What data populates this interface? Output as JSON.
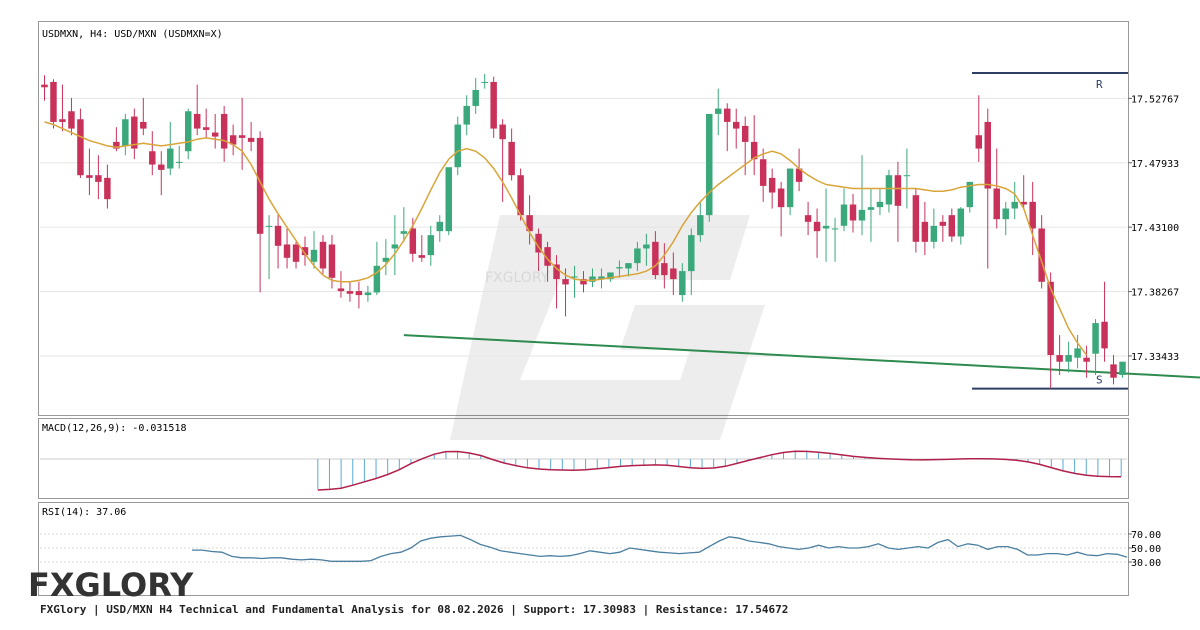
{
  "chart_data": {
    "type": "candlestick",
    "title": "USDMXN, H4: USD/MXN (USDMXN=X)",
    "price_axis": {
      "ylim": [
        17.29,
        17.585
      ],
      "ticks": [
        "17.52767",
        "17.47933",
        "17.43100",
        "17.38267",
        "17.33433"
      ]
    },
    "levels": {
      "resistance": {
        "label": "R",
        "value": 17.5467
      },
      "support": {
        "label": "S",
        "value": 17.3098
      }
    },
    "trendline": {
      "from": {
        "index": 40,
        "value": 17.35
      },
      "to": {
        "index": 164,
        "value": 17.3055
      }
    },
    "candles": [
      [
        17.538,
        17.545,
        17.536,
        17.526
      ],
      [
        17.54,
        17.542,
        17.51,
        17.505
      ],
      [
        17.512,
        17.538,
        17.51,
        17.503
      ],
      [
        17.518,
        17.528,
        17.505,
        17.5
      ],
      [
        17.512,
        17.52,
        17.47,
        17.468
      ],
      [
        17.47,
        17.49,
        17.468,
        17.455
      ],
      [
        17.47,
        17.485,
        17.465,
        17.452
      ],
      [
        17.468,
        17.478,
        17.452,
        17.445
      ],
      [
        17.495,
        17.506,
        17.49,
        17.488
      ],
      [
        17.492,
        17.516,
        17.512,
        17.485
      ],
      [
        17.514,
        17.52,
        17.49,
        17.482
      ],
      [
        17.51,
        17.528,
        17.505,
        17.5
      ],
      [
        17.488,
        17.503,
        17.478,
        17.47
      ],
      [
        17.478,
        17.488,
        17.474,
        17.455
      ],
      [
        17.475,
        17.51,
        17.49,
        17.47
      ],
      [
        17.48,
        17.492,
        17.48,
        17.475
      ],
      [
        17.488,
        17.52,
        17.518,
        17.482
      ],
      [
        17.516,
        17.538,
        17.505,
        17.5
      ],
      [
        17.506,
        17.52,
        17.504,
        17.498
      ],
      [
        17.502,
        17.516,
        17.499,
        17.49
      ],
      [
        17.516,
        17.522,
        17.49,
        17.48
      ],
      [
        17.5,
        17.508,
        17.493,
        17.485
      ],
      [
        17.5,
        17.528,
        17.498,
        17.474
      ],
      [
        17.498,
        17.51,
        17.495,
        17.488
      ],
      [
        17.498,
        17.503,
        17.426,
        17.382
      ],
      [
        17.432,
        17.44,
        17.432,
        17.392
      ],
      [
        17.432,
        17.44,
        17.417,
        17.4
      ],
      [
        17.418,
        17.43,
        17.408,
        17.4
      ],
      [
        17.418,
        17.42,
        17.405,
        17.4
      ],
      [
        17.416,
        17.424,
        17.41,
        17.402
      ],
      [
        17.405,
        17.428,
        17.414,
        17.4
      ],
      [
        17.42,
        17.425,
        17.4,
        17.396
      ],
      [
        17.418,
        17.425,
        17.393,
        17.385
      ],
      [
        17.385,
        17.398,
        17.383,
        17.378
      ],
      [
        17.383,
        17.39,
        17.381,
        17.375
      ],
      [
        17.383,
        17.39,
        17.38,
        17.37
      ],
      [
        17.38,
        17.387,
        17.382,
        17.375
      ],
      [
        17.382,
        17.42,
        17.402,
        17.38
      ],
      [
        17.405,
        17.422,
        17.408,
        17.395
      ],
      [
        17.415,
        17.44,
        17.418,
        17.395
      ],
      [
        17.426,
        17.446,
        17.428,
        17.42
      ],
      [
        17.43,
        17.438,
        17.411,
        17.405
      ],
      [
        17.41,
        17.425,
        17.408,
        17.405
      ],
      [
        17.41,
        17.432,
        17.425,
        17.402
      ],
      [
        17.428,
        17.44,
        17.435,
        17.42
      ],
      [
        17.428,
        17.464,
        17.476,
        17.425
      ],
      [
        17.476,
        17.514,
        17.508,
        17.47
      ],
      [
        17.508,
        17.53,
        17.522,
        17.5
      ],
      [
        17.522,
        17.543,
        17.534,
        17.516
      ],
      [
        17.54,
        17.546,
        17.54,
        17.535
      ],
      [
        17.54,
        17.544,
        17.505,
        17.498
      ],
      [
        17.508,
        17.512,
        17.497,
        17.45
      ],
      [
        17.495,
        17.505,
        17.47,
        17.466
      ],
      [
        17.47,
        17.475,
        17.44,
        17.436
      ],
      [
        17.44,
        17.455,
        17.428,
        17.418
      ],
      [
        17.426,
        17.43,
        17.412,
        17.398
      ],
      [
        17.416,
        17.42,
        17.402,
        17.39
      ],
      [
        17.403,
        17.41,
        17.392,
        17.37
      ],
      [
        17.392,
        17.4,
        17.388,
        17.364
      ],
      [
        17.394,
        17.402,
        17.394,
        17.378
      ],
      [
        17.392,
        17.398,
        17.388,
        17.382
      ],
      [
        17.39,
        17.4,
        17.394,
        17.386
      ],
      [
        17.392,
        17.4,
        17.394,
        17.385
      ],
      [
        17.392,
        17.395,
        17.397,
        17.39
      ],
      [
        17.4,
        17.406,
        17.401,
        17.393
      ],
      [
        17.4,
        17.404,
        17.404,
        17.394
      ],
      [
        17.404,
        17.42,
        17.415,
        17.398
      ],
      [
        17.415,
        17.426,
        17.418,
        17.402
      ],
      [
        17.42,
        17.428,
        17.395,
        17.392
      ],
      [
        17.404,
        17.419,
        17.395,
        17.385
      ],
      [
        17.4,
        17.412,
        17.392,
        17.38
      ],
      [
        17.38,
        17.404,
        17.398,
        17.375
      ],
      [
        17.398,
        17.43,
        17.425,
        17.38
      ],
      [
        17.425,
        17.45,
        17.44,
        17.42
      ],
      [
        17.44,
        17.485,
        17.516,
        17.435
      ],
      [
        17.516,
        17.535,
        17.52,
        17.5
      ],
      [
        17.52,
        17.524,
        17.51,
        17.488
      ],
      [
        17.51,
        17.52,
        17.505,
        17.49
      ],
      [
        17.507,
        17.514,
        17.495,
        17.47
      ],
      [
        17.495,
        17.515,
        17.482,
        17.47
      ],
      [
        17.482,
        17.49,
        17.462,
        17.45
      ],
      [
        17.468,
        17.475,
        17.457,
        17.445
      ],
      [
        17.46,
        17.465,
        17.446,
        17.424
      ],
      [
        17.446,
        17.45,
        17.475,
        17.44
      ],
      [
        17.475,
        17.49,
        17.465,
        17.458
      ],
      [
        17.44,
        17.45,
        17.435,
        17.425
      ],
      [
        17.435,
        17.445,
        17.428,
        17.408
      ],
      [
        17.43,
        17.46,
        17.432,
        17.405
      ],
      [
        17.43,
        17.438,
        17.43,
        17.405
      ],
      [
        17.432,
        17.46,
        17.448,
        17.428
      ],
      [
        17.448,
        17.456,
        17.436,
        17.427
      ],
      [
        17.436,
        17.485,
        17.444,
        17.425
      ],
      [
        17.444,
        17.46,
        17.446,
        17.42
      ],
      [
        17.446,
        17.46,
        17.45,
        17.44
      ],
      [
        17.448,
        17.474,
        17.47,
        17.442
      ],
      [
        17.47,
        17.48,
        17.447,
        17.42
      ],
      [
        17.47,
        17.49,
        17.47,
        17.445
      ],
      [
        17.455,
        17.46,
        17.42,
        17.412
      ],
      [
        17.435,
        17.45,
        17.42,
        17.41
      ],
      [
        17.42,
        17.445,
        17.432,
        17.415
      ],
      [
        17.435,
        17.44,
        17.432,
        17.42
      ],
      [
        17.44,
        17.445,
        17.424,
        17.42
      ],
      [
        17.424,
        17.446,
        17.445,
        17.418
      ],
      [
        17.446,
        17.465,
        17.465,
        17.442
      ],
      [
        17.5,
        17.53,
        17.49,
        17.48
      ],
      [
        17.51,
        17.52,
        17.46,
        17.4
      ],
      [
        17.46,
        17.49,
        17.437,
        17.43
      ],
      [
        17.437,
        17.45,
        17.445,
        17.425
      ],
      [
        17.445,
        17.465,
        17.45,
        17.437
      ],
      [
        17.45,
        17.47,
        17.448,
        17.445
      ],
      [
        17.45,
        17.465,
        17.43,
        17.41
      ],
      [
        17.43,
        17.44,
        17.39,
        17.385
      ],
      [
        17.39,
        17.397,
        17.335,
        17.31
      ],
      [
        17.335,
        17.35,
        17.33,
        17.32
      ],
      [
        17.33,
        17.345,
        17.335,
        17.322
      ],
      [
        17.333,
        17.35,
        17.34,
        17.325
      ],
      [
        17.333,
        17.342,
        17.33,
        17.318
      ],
      [
        17.336,
        17.362,
        17.359,
        17.32
      ],
      [
        17.36,
        17.39,
        17.34,
        17.33
      ],
      [
        17.328,
        17.335,
        17.318,
        17.313
      ],
      [
        17.32,
        17.33,
        17.33,
        17.318
      ]
    ],
    "ma_overlay": [
      17.51,
      17.508,
      17.505,
      17.502,
      17.499,
      17.496,
      17.494,
      17.492,
      17.491,
      17.492,
      17.493,
      17.494,
      17.493,
      17.492,
      17.493,
      17.494,
      17.495,
      17.497,
      17.498,
      17.497,
      17.496,
      17.493,
      17.488,
      17.478,
      17.465,
      17.452,
      17.441,
      17.431,
      17.421,
      17.411,
      17.402,
      17.395,
      17.391,
      17.39,
      17.39,
      17.391,
      17.393,
      17.397,
      17.403,
      17.411,
      17.421,
      17.432,
      17.445,
      17.459,
      17.472,
      17.482,
      17.488,
      17.49,
      17.488,
      17.483,
      17.475,
      17.465,
      17.453,
      17.44,
      17.427,
      17.416,
      17.407,
      17.4,
      17.395,
      17.392,
      17.391,
      17.391,
      17.392,
      17.393,
      17.394,
      17.395,
      17.396,
      17.398,
      17.402,
      17.41,
      17.42,
      17.432,
      17.442,
      17.45,
      17.457,
      17.463,
      17.468,
      17.473,
      17.478,
      17.483,
      17.486,
      17.488,
      17.486,
      17.481,
      17.475,
      17.47,
      17.466,
      17.463,
      17.462,
      17.461,
      17.46,
      17.46,
      17.46,
      17.46,
      17.46,
      17.46,
      17.46,
      17.46,
      17.459,
      17.458,
      17.458,
      17.459,
      17.461,
      17.462,
      17.463,
      17.463,
      17.462,
      17.46,
      17.456,
      17.445,
      17.425,
      17.405,
      17.385,
      17.37,
      17.355,
      17.344,
      17.335
    ],
    "macd": {
      "label": "MACD(12,26,9): -0.031518",
      "histogram": [
        -0.0305,
        -0.0299,
        -0.0285,
        -0.0255,
        -0.0222,
        -0.0188,
        -0.0148,
        -0.01,
        -0.004,
        0.001,
        0.0055,
        0.008,
        0.008,
        0.0065,
        0.004,
        0.0,
        -0.0035,
        -0.0062,
        -0.0085,
        -0.0098,
        -0.0105,
        -0.0108,
        -0.011,
        -0.0105,
        -0.0095,
        -0.0082,
        -0.007,
        -0.0062,
        -0.0058,
        -0.0055,
        -0.006,
        -0.0072,
        -0.0085,
        -0.0092,
        -0.0088,
        -0.007,
        -0.004,
        -0.001,
        0.002,
        0.0048,
        0.007,
        0.0082,
        0.008,
        0.0072,
        0.006,
        0.0045,
        0.003,
        0.002,
        0.0012,
        0.0005,
        0.0,
        -0.0004,
        -0.0005,
        -0.0002,
        0.0,
        0.0004,
        0.0006,
        0.0007,
        0.0005,
        0.0,
        -0.0008,
        -0.0025,
        -0.005,
        -0.0082,
        -0.0115,
        -0.014,
        -0.0158,
        -0.0168,
        -0.0172,
        -0.0172
      ],
      "signal": [
        -0.031,
        -0.0304,
        -0.0292,
        -0.0262,
        -0.0228,
        -0.0195,
        -0.0155,
        -0.0107,
        -0.0046,
        0.0004,
        0.0048,
        0.0074,
        0.0075,
        0.006,
        0.0035,
        -0.0005,
        -0.004,
        -0.0066,
        -0.0088,
        -0.01,
        -0.0107,
        -0.011,
        -0.0112,
        -0.0107,
        -0.0098,
        -0.0086,
        -0.0074,
        -0.0066,
        -0.0062,
        -0.0059,
        -0.0063,
        -0.0075,
        -0.0087,
        -0.0094,
        -0.009,
        -0.0073,
        -0.0044,
        -0.0014,
        0.0015,
        0.0043,
        0.0065,
        0.0077,
        0.0076,
        0.0068,
        0.0056,
        0.0041,
        0.0026,
        0.0016,
        0.0008,
        0.0001,
        -0.0004,
        -0.0008,
        -0.0009,
        -0.0006,
        -0.0004,
        0.0,
        0.0002,
        0.0003,
        0.0001,
        -0.0004,
        -0.0012,
        -0.0029,
        -0.0054,
        -0.0086,
        -0.0119,
        -0.0144,
        -0.0162,
        -0.0172,
        -0.0176,
        -0.0177
      ]
    },
    "rsi": {
      "label": "RSI(14): 37.06",
      "ticks": [
        "70.00",
        "50.00",
        "30.00"
      ],
      "values": [
        47,
        47,
        45,
        44,
        38,
        36,
        36,
        35,
        36,
        36,
        34,
        33,
        34,
        33,
        31,
        31,
        31,
        31,
        32,
        38,
        42,
        44,
        50,
        60,
        64,
        66,
        67,
        68,
        62,
        55,
        51,
        46,
        44,
        42,
        40,
        38,
        39,
        38,
        39,
        42,
        46,
        44,
        42,
        44,
        50,
        48,
        46,
        44,
        43,
        42,
        43,
        44,
        52,
        60,
        66,
        64,
        60,
        58,
        56,
        52,
        50,
        48,
        50,
        54,
        50,
        52,
        50,
        50,
        52,
        56,
        50,
        48,
        50,
        52,
        50,
        58,
        62,
        52,
        56,
        54,
        48,
        52,
        52,
        48,
        40,
        40,
        42,
        42,
        40,
        44,
        40,
        39,
        42,
        41,
        37
      ]
    }
  },
  "footer": {
    "brand": "FXGLORY",
    "caption": "FXGlory | USD/MXN H4 Technical and Fundamental Analysis for 08.02.2026 | Support: 17.30983 | Resistance: 17.54672"
  },
  "colors": {
    "bull": "#3aa87a",
    "bear": "#c8325a",
    "ma": "#d9a53a",
    "trend": "#2e8b4f",
    "level": "#2e3f66",
    "macd_hist": "#5aa9d6",
    "macd_signal": "#b0204a",
    "rsi": "#4a7fa0"
  }
}
